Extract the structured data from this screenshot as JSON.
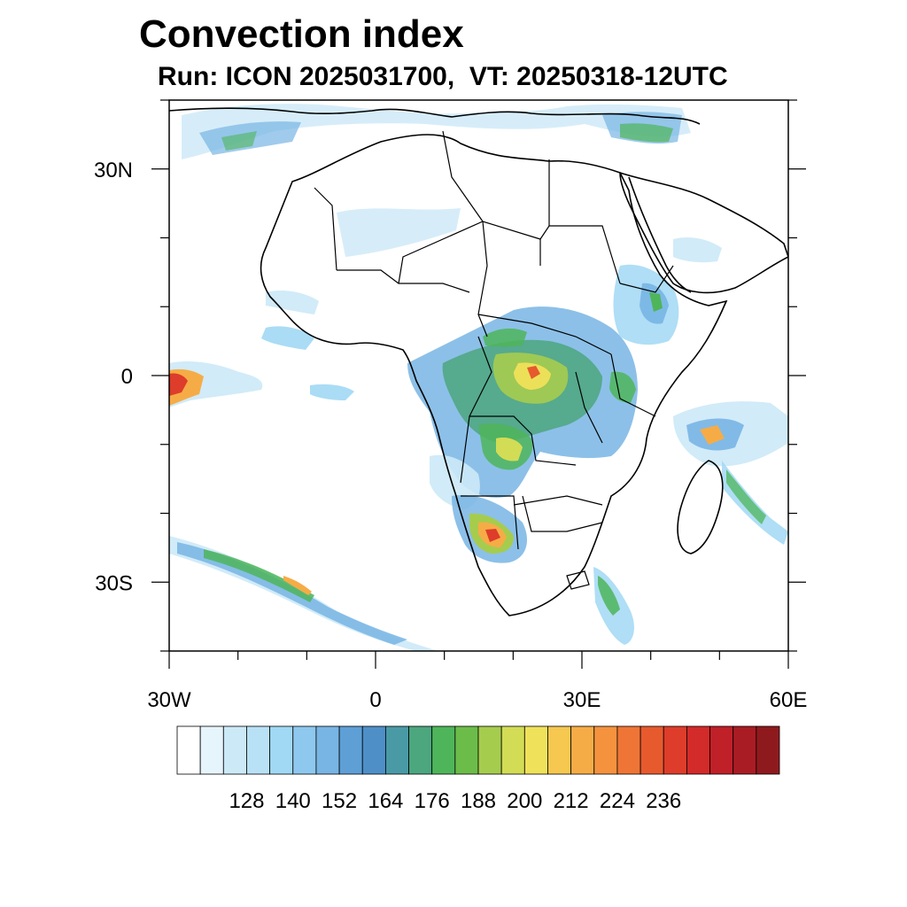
{
  "title": "Convection index",
  "subtitle": "Run: ICON 2025031700,  VT: 20250318-12UTC",
  "axes": {
    "lat_labels": [
      "30N",
      "0",
      "30S"
    ],
    "lat_values": [
      30,
      0,
      -30
    ],
    "lon_labels": [
      "30W",
      "0",
      "30E",
      "60E"
    ],
    "lon_values": [
      -30,
      0,
      30,
      60
    ],
    "lon_range": [
      -30,
      60
    ],
    "lat_range": [
      -40,
      40
    ]
  },
  "colorbar": {
    "labels": [
      "128",
      "140",
      "152",
      "164",
      "176",
      "188",
      "200",
      "212",
      "224",
      "236"
    ],
    "colors": [
      "#ffffff",
      "#e6f4fb",
      "#cce9f7",
      "#b8e1f6",
      "#a1d8f4",
      "#8ec8ee",
      "#78b5e4",
      "#5e9fd6",
      "#4e8fc8",
      "#4a9aa6",
      "#4ca67e",
      "#4eb55a",
      "#6cbc4a",
      "#a6cc4e",
      "#d3dc55",
      "#f0e15a",
      "#f6c850",
      "#f6ac46",
      "#f4923e",
      "#ef7536",
      "#e65a2e",
      "#dd3d2a",
      "#d32a2a",
      "#c02028",
      "#aa1c24",
      "#8e1a1e"
    ]
  }
}
